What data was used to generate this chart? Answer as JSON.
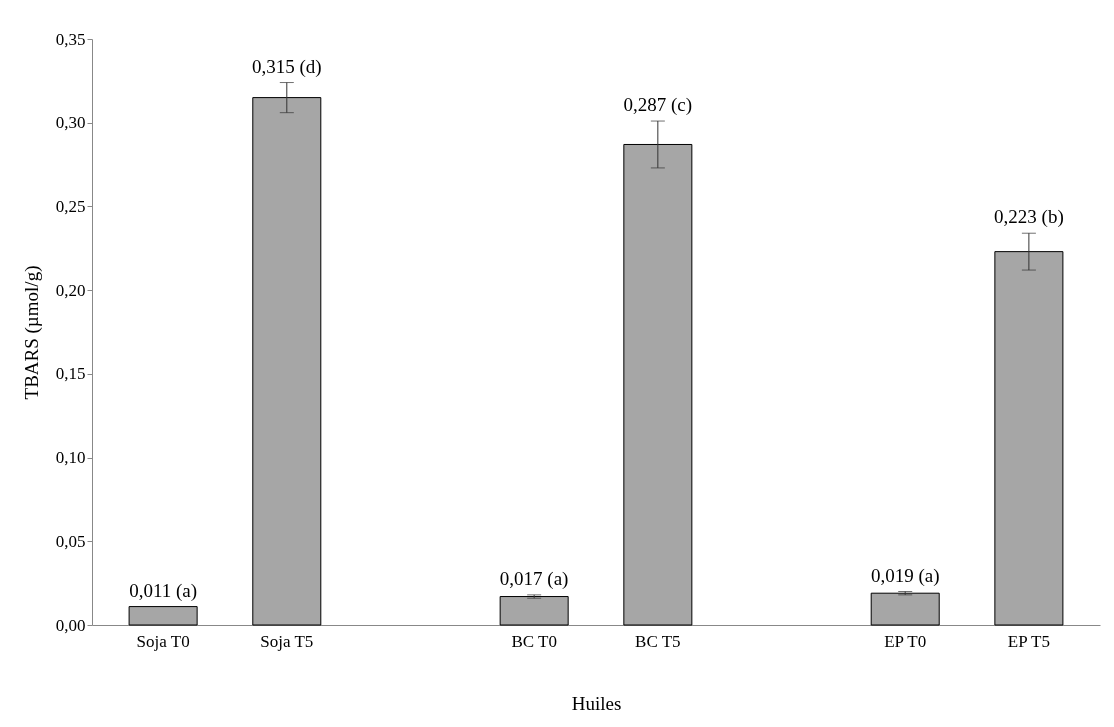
{
  "chart_data": {
    "type": "bar",
    "xlabel": "Huiles",
    "ylabel": "TBARS (µmol/g)",
    "categories": [
      "Soja T0",
      "Soja T5",
      null,
      "BC T0",
      "BC T5",
      null,
      "EP T0",
      "EP T5"
    ],
    "values": [
      0.011,
      0.315,
      null,
      0.017,
      0.287,
      null,
      0.019,
      0.223
    ],
    "errors": [
      null,
      0.009,
      null,
      0.001,
      0.014,
      null,
      0.001,
      0.011
    ],
    "value_labels": [
      "0,011 (a)",
      "0,315 (d)",
      null,
      "0,017 (a)",
      "0,287 (c)",
      null,
      "0,019 (a)",
      "0,223 (b)"
    ],
    "color": "#a6a6a6",
    "ylim": [
      0,
      0.35
    ],
    "yticks": [
      {
        "value": 0,
        "label": "0,00"
      },
      {
        "value": 0.05,
        "label": "0,05"
      },
      {
        "value": 0.1,
        "label": "0,10"
      },
      {
        "value": 0.15,
        "label": "0,15"
      },
      {
        "value": 0.2,
        "label": "0,20"
      },
      {
        "value": 0.25,
        "label": "0,25"
      },
      {
        "value": 0.3,
        "label": "0,30"
      },
      {
        "value": 0.35,
        "label": "0,35"
      }
    ],
    "grid": false
  }
}
